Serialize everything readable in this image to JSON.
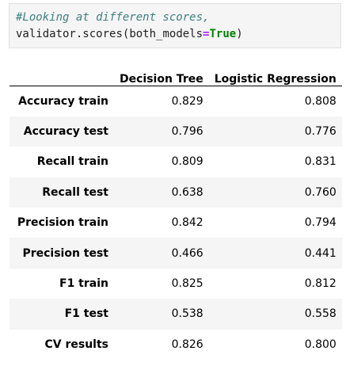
{
  "code": {
    "comment": "#Looking at different scores,",
    "object": "validator",
    "method": "scores",
    "open_paren": "(",
    "param": "both_models",
    "operator": "=",
    "value": "True",
    "close_paren": ")"
  },
  "table": {
    "corner": "",
    "columns": [
      "Decision Tree",
      "Logistic Regression"
    ],
    "rows": [
      {
        "label": "Accuracy train",
        "values": [
          "0.829",
          "0.808"
        ]
      },
      {
        "label": "Accuracy test",
        "values": [
          "0.796",
          "0.776"
        ]
      },
      {
        "label": "Recall train",
        "values": [
          "0.809",
          "0.831"
        ]
      },
      {
        "label": "Recall test",
        "values": [
          "0.638",
          "0.760"
        ]
      },
      {
        "label": "Precision train",
        "values": [
          "0.842",
          "0.794"
        ]
      },
      {
        "label": "Precision test",
        "values": [
          "0.466",
          "0.441"
        ]
      },
      {
        "label": "F1 train",
        "values": [
          "0.825",
          "0.812"
        ]
      },
      {
        "label": "F1 test",
        "values": [
          "0.538",
          "0.558"
        ]
      },
      {
        "label": "CV results",
        "values": [
          "0.826",
          "0.800"
        ]
      }
    ]
  }
}
